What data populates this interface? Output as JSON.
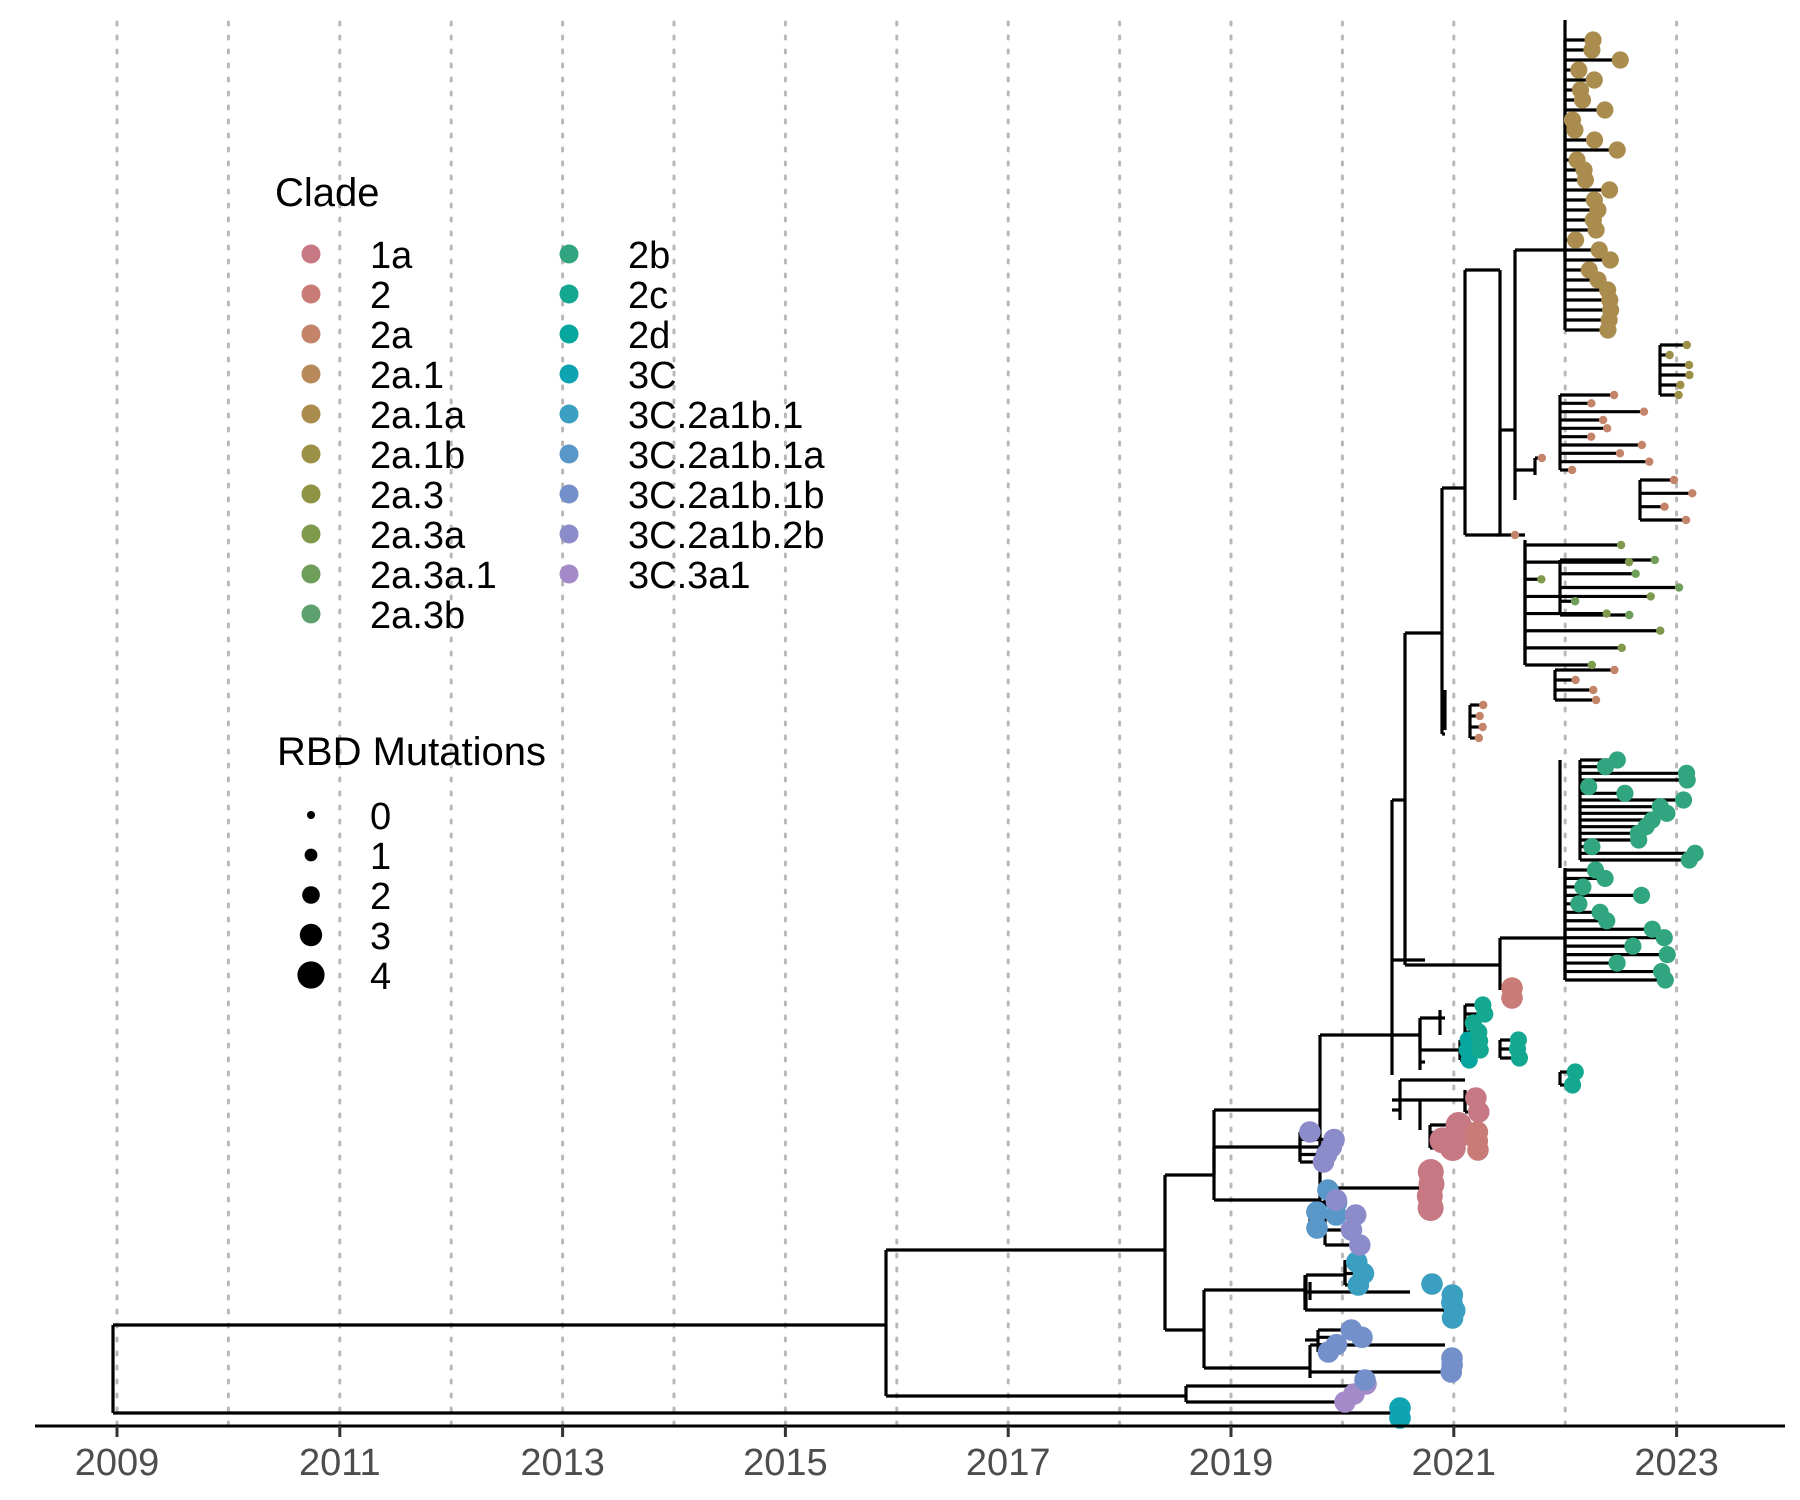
{
  "chart_data": {
    "type": "phylogenetic-tree",
    "xaxis": {
      "ticks": [
        2009,
        2011,
        2013,
        2015,
        2017,
        2019,
        2021,
        2023
      ],
      "grid_years": [
        2009,
        2010,
        2011,
        2012,
        2013,
        2014,
        2015,
        2016,
        2017,
        2018,
        2019,
        2020,
        2021,
        2022,
        2023
      ],
      "xlim": [
        2008.3,
        2023.95
      ]
    },
    "grid": "vertical dotted",
    "legend": {
      "placement": "top-left",
      "clade": {
        "title": "Clade",
        "entries": [
          {
            "label": "1a",
            "color": "#C77983"
          },
          {
            "label": "2",
            "color": "#C97C77"
          },
          {
            "label": "2a",
            "color": "#C4846A"
          },
          {
            "label": "2a.1",
            "color": "#B8895A"
          },
          {
            "label": "2a.1a",
            "color": "#A98C4E"
          },
          {
            "label": "2a.1b",
            "color": "#9C9047"
          },
          {
            "label": "2a.3",
            "color": "#8E9444"
          },
          {
            "label": "2a.3a",
            "color": "#7F9A4C"
          },
          {
            "label": "2a.3a.1",
            "color": "#6F9E5A"
          },
          {
            "label": "2a.3b",
            "color": "#5DA26E"
          },
          {
            "label": "2b",
            "color": "#31A57F"
          },
          {
            "label": "2c",
            "color": "#13A88F"
          },
          {
            "label": "2d",
            "color": "#07A69E"
          },
          {
            "label": "3C",
            "color": "#0FA2B0"
          },
          {
            "label": "3C.2a1b.1",
            "color": "#3A9FC0"
          },
          {
            "label": "3C.2a1b.1a",
            "color": "#5A97C9"
          },
          {
            "label": "3C.2a1b.1b",
            "color": "#7490CA"
          },
          {
            "label": "3C.2a1b.2b",
            "color": "#8D8CCB"
          },
          {
            "label": "3C.3a1",
            "color": "#A48AC9"
          }
        ]
      },
      "rbd": {
        "title": "RBD Mutations",
        "entries": [
          {
            "label": "0",
            "value": 0
          },
          {
            "label": "1",
            "value": 1
          },
          {
            "label": "2",
            "value": 2
          },
          {
            "label": "3",
            "value": 3
          },
          {
            "label": "4",
            "value": 4
          }
        ]
      }
    },
    "tip_groups": [
      {
        "clade": "2a.1a",
        "date": 2022.0,
        "count": 36,
        "rbd": 2
      },
      {
        "clade": "2a.1b",
        "date": 2023.0,
        "count": 10,
        "rbd": 0
      },
      {
        "clade": "2a",
        "date": 2022.4,
        "count": 12,
        "rbd": 0
      },
      {
        "clade": "2a.3a",
        "date": 2022.5,
        "count": 16,
        "rbd": 0
      },
      {
        "clade": "2b",
        "date": 2022.9,
        "count": 32,
        "rbd": 2
      },
      {
        "clade": "2",
        "date": 2021.5,
        "count": 8,
        "rbd": 2
      },
      {
        "clade": "2c",
        "date": 2021.4,
        "count": 8,
        "rbd": 2
      },
      {
        "clade": "2d",
        "date": 2021.0,
        "count": 2,
        "rbd": 2
      },
      {
        "clade": "1a",
        "date": 2020.8,
        "count": 6,
        "rbd": 3
      },
      {
        "clade": "3C.2a1b.2b",
        "date": 2020.1,
        "count": 6,
        "rbd": 3
      },
      {
        "clade": "3C.2a1b.1",
        "date": 2020.8,
        "count": 6,
        "rbd": 3
      },
      {
        "clade": "3C.2a1b.1b",
        "date": 2020.4,
        "count": 8,
        "rbd": 3
      },
      {
        "clade": "3C.3a1",
        "date": 2020.1,
        "count": 3,
        "rbd": 3
      },
      {
        "clade": "3C",
        "date": 2020.5,
        "count": 2,
        "rbd": 3
      }
    ]
  }
}
